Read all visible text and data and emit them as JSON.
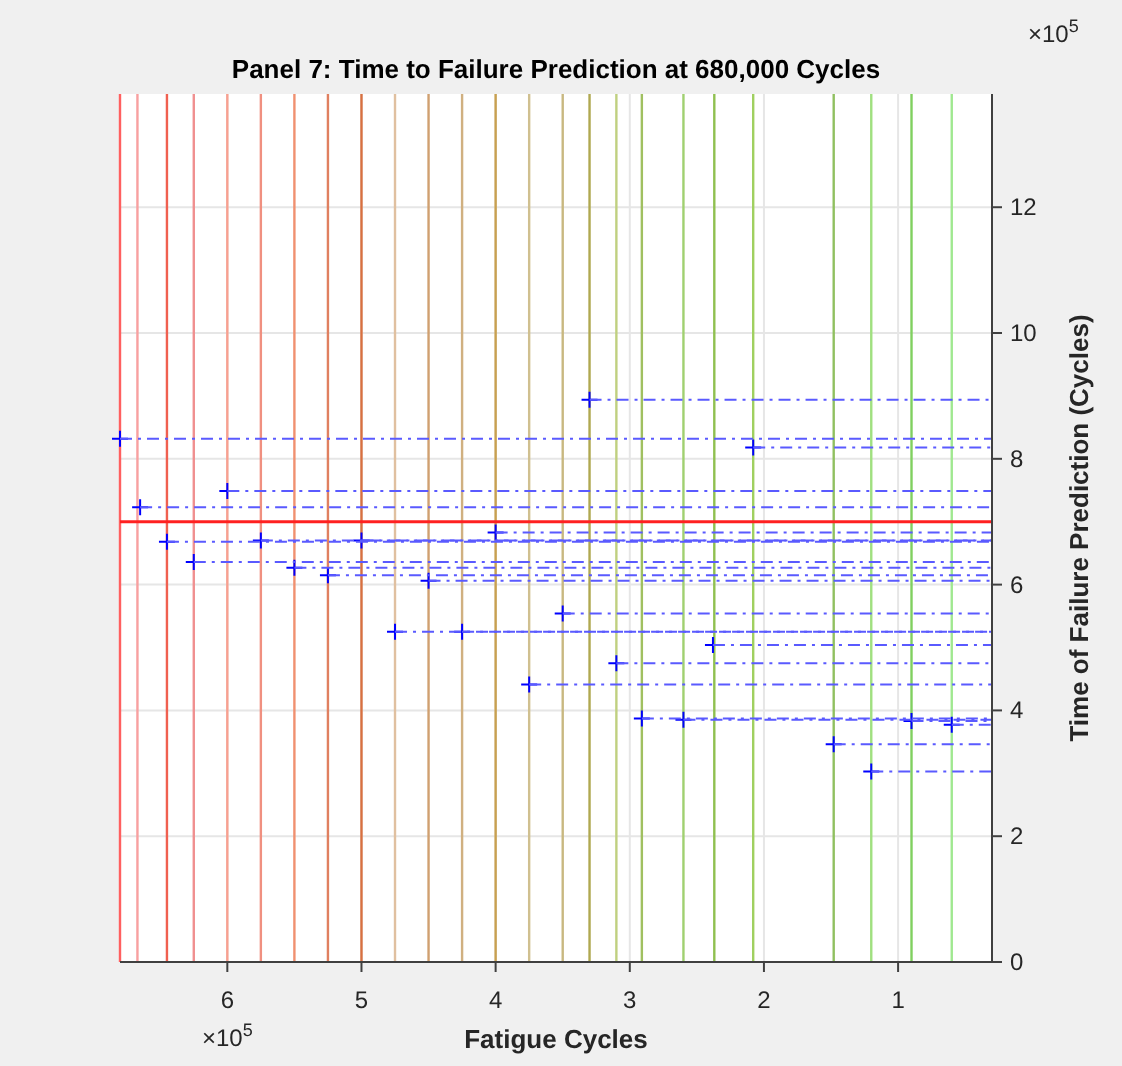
{
  "chart_data": {
    "type": "line",
    "title": "Panel 7: Time to Failure Prediction at 680,000 Cycles",
    "xlabel": "Fatigue Cycles",
    "ylabel": "Time of Failure Prediction (Cycles)",
    "annotations": [
      "×10$^{5}$",
      "×10$^{5}$"
    ],
    "xlim": [
      6.8,
      0.3
    ],
    "ylim": [
      0,
      13.8
    ],
    "xticks": [
      6,
      5,
      4,
      3,
      2,
      1
    ],
    "yticks": [
      0,
      2,
      4,
      6,
      8,
      10,
      12
    ],
    "grid": true,
    "ref_lines": [
      {
        "axis": "x",
        "value": 6.8,
        "color": "#ff6060"
      },
      {
        "axis": "x",
        "value": 6.67,
        "color": "#f8a0a0"
      },
      {
        "axis": "x",
        "value": 6.45,
        "color": "#f06050"
      },
      {
        "axis": "x",
        "value": 6.25,
        "color": "#f09090"
      },
      {
        "axis": "x",
        "value": 6.0,
        "color": "#f8a090"
      },
      {
        "axis": "x",
        "value": 5.75,
        "color": "#f09080"
      },
      {
        "axis": "x",
        "value": 5.5,
        "color": "#f09070"
      },
      {
        "axis": "x",
        "value": 5.25,
        "color": "#e08060"
      },
      {
        "axis": "x",
        "value": 5.0,
        "color": "#d87040"
      },
      {
        "axis": "x",
        "value": 4.75,
        "color": "#e0c0a0"
      },
      {
        "axis": "x",
        "value": 4.5,
        "color": "#d0a070"
      },
      {
        "axis": "x",
        "value": 4.25,
        "color": "#d0b080"
      },
      {
        "axis": "x",
        "value": 4.0,
        "color": "#c8a050"
      },
      {
        "axis": "x",
        "value": 3.75,
        "color": "#d0c090"
      },
      {
        "axis": "x",
        "value": 3.5,
        "color": "#c8b880"
      },
      {
        "axis": "x",
        "value": 3.3,
        "color": "#b0a850"
      },
      {
        "axis": "x",
        "value": 3.1,
        "color": "#c0d080"
      },
      {
        "axis": "x",
        "value": 2.91,
        "color": "#a0c060"
      },
      {
        "axis": "x",
        "value": 2.6,
        "color": "#a0d070"
      },
      {
        "axis": "x",
        "value": 2.37,
        "color": "#90c050"
      },
      {
        "axis": "x",
        "value": 2.08,
        "color": "#a0d060"
      },
      {
        "axis": "x",
        "value": 1.48,
        "color": "#90c060"
      },
      {
        "axis": "x",
        "value": 1.2,
        "color": "#a0e080"
      },
      {
        "axis": "x",
        "value": 0.9,
        "color": "#80d060"
      },
      {
        "axis": "x",
        "value": 0.6,
        "color": "#a0e890"
      },
      {
        "axis": "y",
        "value": 7.0,
        "color": "#ff2020",
        "line_style": "solid"
      }
    ],
    "series": [
      {
        "type": "scatter",
        "marker": "cross",
        "color": "#0000ff",
        "x": [
          6.8,
          6.65,
          6.0,
          6.45,
          5.75,
          5.0,
          4.0,
          6.25,
          5.5,
          5.25,
          4.5,
          3.5,
          4.75,
          4.25,
          3.3,
          2.08,
          2.38,
          3.1,
          3.75,
          2.91,
          2.6,
          0.9,
          0.6,
          1.48,
          1.2
        ],
        "values": [
          8.32,
          7.23,
          7.49,
          6.68,
          6.7,
          6.7,
          6.83,
          6.36,
          6.27,
          6.15,
          6.06,
          5.54,
          5.25,
          5.25,
          8.94,
          8.18,
          5.04,
          4.75,
          4.41,
          3.87,
          3.85,
          3.83,
          3.77,
          3.46,
          3.03
        ]
      },
      {
        "marker": "none",
        "line_style": "dashed",
        "color": "#5a5aff",
        "x": [
          6.8,
          0.3
        ],
        "values": [
          8.32,
          8.32
        ]
      },
      {
        "marker": "none",
        "line_style": "dashed",
        "color": "#5a5aff",
        "x": [
          6.65,
          0.3
        ],
        "values": [
          7.23,
          7.23
        ]
      },
      {
        "marker": "none",
        "line_style": "dashed",
        "color": "#5a5aff",
        "x": [
          6.0,
          0.3
        ],
        "values": [
          7.49,
          7.49
        ]
      },
      {
        "marker": "none",
        "line_style": "dashed",
        "color": "#5a5aff",
        "x": [
          6.45,
          0.3
        ],
        "values": [
          6.68,
          6.68
        ]
      },
      {
        "marker": "none",
        "line_style": "dashed",
        "color": "#5a5aff",
        "x": [
          5.75,
          0.3
        ],
        "values": [
          6.7,
          6.7
        ]
      },
      {
        "marker": "none",
        "line_style": "dashed",
        "color": "#5a5aff",
        "x": [
          5.0,
          0.3
        ],
        "values": [
          6.7,
          6.7
        ]
      },
      {
        "marker": "none",
        "line_style": "dashed",
        "color": "#5a5aff",
        "x": [
          4.0,
          0.3
        ],
        "values": [
          6.83,
          6.83
        ]
      },
      {
        "marker": "none",
        "line_style": "dashed",
        "color": "#5a5aff",
        "x": [
          6.25,
          0.3
        ],
        "values": [
          6.36,
          6.36
        ]
      },
      {
        "marker": "none",
        "line_style": "dashed",
        "color": "#5a5aff",
        "x": [
          5.5,
          0.3
        ],
        "values": [
          6.27,
          6.27
        ]
      },
      {
        "marker": "none",
        "line_style": "dashed",
        "color": "#5a5aff",
        "x": [
          5.25,
          0.3
        ],
        "values": [
          6.15,
          6.15
        ]
      },
      {
        "marker": "none",
        "line_style": "dashed",
        "color": "#5a5aff",
        "x": [
          4.5,
          0.3
        ],
        "values": [
          6.06,
          6.06
        ]
      },
      {
        "marker": "none",
        "line_style": "dashed",
        "color": "#5a5aff",
        "x": [
          3.5,
          0.3
        ],
        "values": [
          5.54,
          5.54
        ]
      },
      {
        "marker": "none",
        "line_style": "dashed",
        "color": "#5a5aff",
        "x": [
          4.75,
          0.3
        ],
        "values": [
          5.25,
          5.25
        ]
      },
      {
        "marker": "none",
        "line_style": "dashed",
        "color": "#5a5aff",
        "x": [
          4.25,
          0.3
        ],
        "values": [
          5.25,
          5.25
        ]
      },
      {
        "marker": "none",
        "line_style": "dashed",
        "color": "#5a5aff",
        "x": [
          3.3,
          0.3
        ],
        "values": [
          8.94,
          8.94
        ]
      },
      {
        "marker": "none",
        "line_style": "dashed",
        "color": "#5a5aff",
        "x": [
          2.08,
          0.3
        ],
        "values": [
          8.18,
          8.18
        ]
      },
      {
        "marker": "none",
        "line_style": "dashed",
        "color": "#5a5aff",
        "x": [
          2.38,
          0.3
        ],
        "values": [
          5.04,
          5.04
        ]
      },
      {
        "marker": "none",
        "line_style": "dashed",
        "color": "#5a5aff",
        "x": [
          3.1,
          0.3
        ],
        "values": [
          4.75,
          4.75
        ]
      },
      {
        "marker": "none",
        "line_style": "dashed",
        "color": "#5a5aff",
        "x": [
          3.75,
          0.3
        ],
        "values": [
          4.41,
          4.41
        ]
      },
      {
        "marker": "none",
        "line_style": "dashed",
        "color": "#5a5aff",
        "x": [
          2.91,
          0.3
        ],
        "values": [
          3.87,
          3.87
        ]
      },
      {
        "marker": "none",
        "line_style": "dashed",
        "color": "#5a5aff",
        "x": [
          2.6,
          0.3
        ],
        "values": [
          3.85,
          3.85
        ]
      },
      {
        "marker": "none",
        "line_style": "dashed",
        "color": "#5a5aff",
        "x": [
          0.9,
          0.3
        ],
        "values": [
          3.83,
          3.83
        ]
      },
      {
        "marker": "none",
        "line_style": "dashed",
        "color": "#5a5aff",
        "x": [
          0.6,
          0.3
        ],
        "values": [
          3.77,
          3.77
        ]
      },
      {
        "marker": "none",
        "line_style": "dashed",
        "color": "#5a5aff",
        "x": [
          1.48,
          0.3
        ],
        "values": [
          3.46,
          3.46
        ]
      },
      {
        "marker": "none",
        "line_style": "dashed",
        "color": "#5a5aff",
        "x": [
          1.2,
          0.3
        ],
        "values": [
          3.03,
          3.03
        ]
      }
    ]
  }
}
